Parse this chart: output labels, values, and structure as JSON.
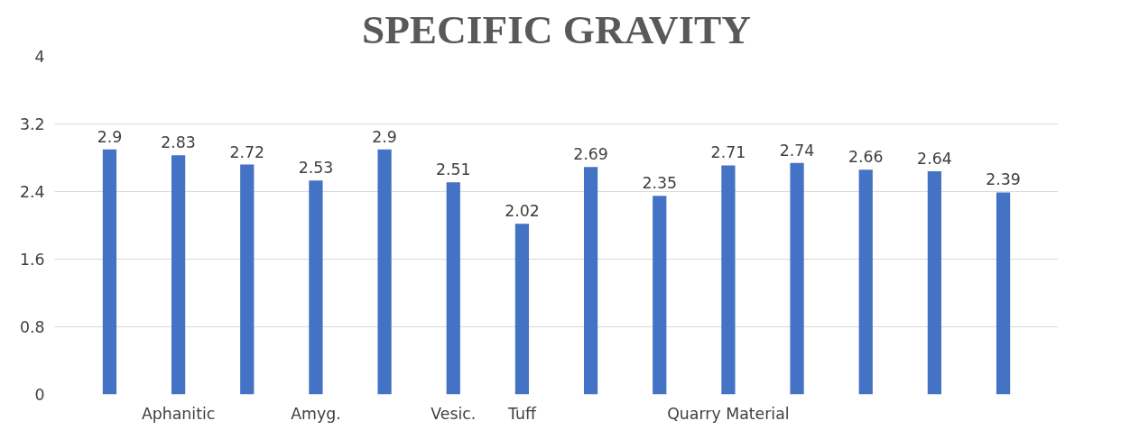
{
  "chart_data": {
    "type": "bar",
    "title": "SPECIFIC GRAVITY",
    "categories": [
      null,
      "Aphanitic",
      null,
      "Amyg.",
      null,
      "Vesic.",
      "Tuff",
      null,
      null,
      "Quarry Material",
      null,
      null,
      null,
      null
    ],
    "values": [
      2.9,
      2.83,
      2.72,
      2.53,
      2.9,
      2.51,
      2.02,
      2.69,
      2.35,
      2.71,
      2.74,
      2.66,
      2.64,
      2.39
    ],
    "color": "#4472c4",
    "ylim": [
      0,
      4
    ],
    "yticks": [
      0,
      0.8,
      1.6,
      2.4,
      3.2,
      4
    ],
    "grid": "y",
    "data_labels": true
  }
}
